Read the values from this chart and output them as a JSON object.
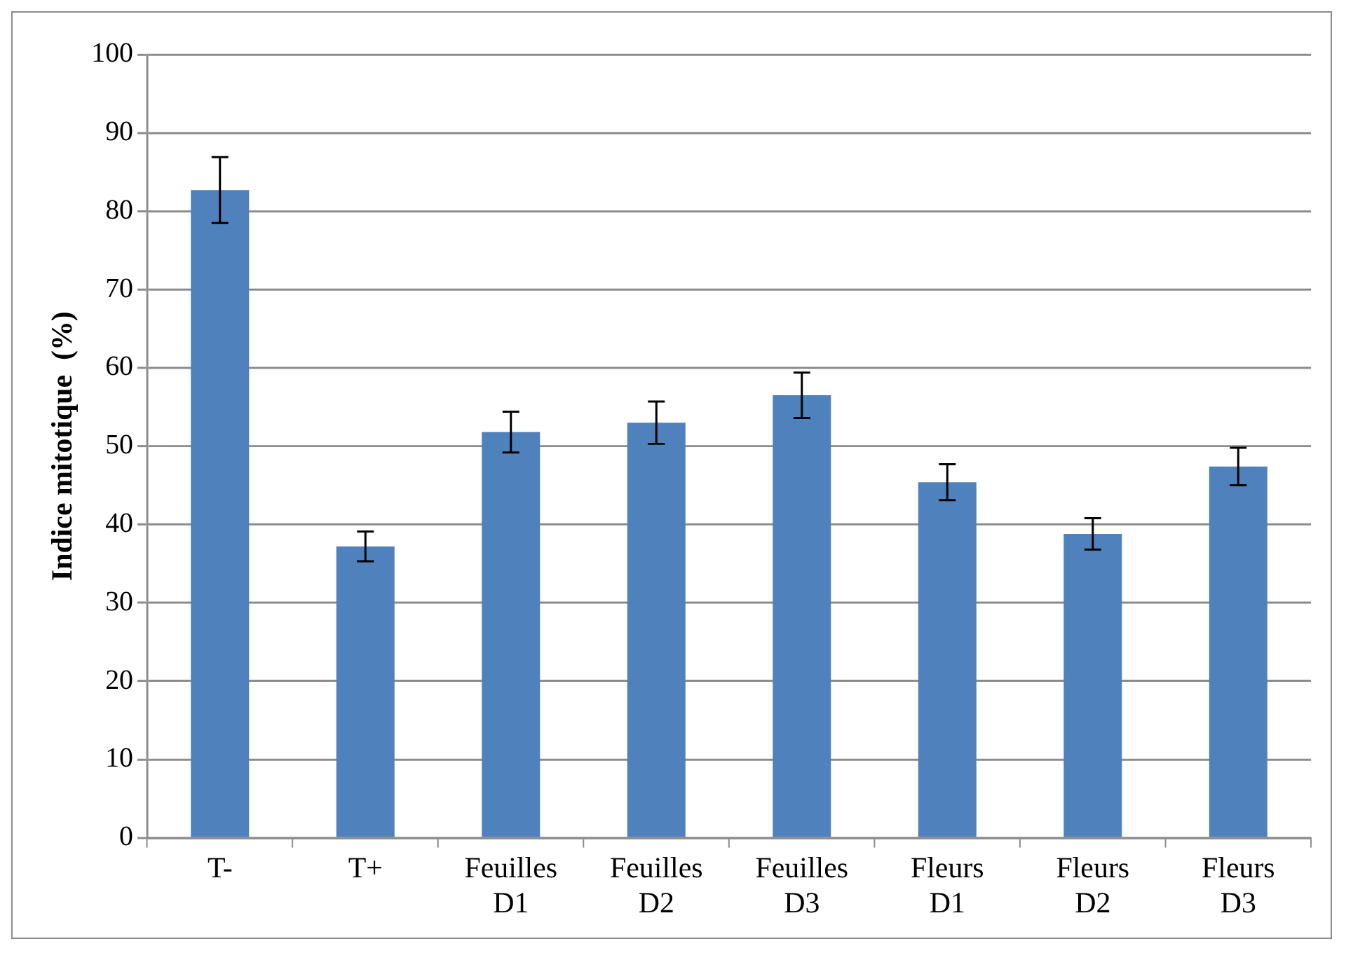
{
  "chart_data": {
    "type": "bar",
    "ylabel": "Indice mitotique  (%)",
    "categories": [
      "T-",
      "T+",
      "Feuilles D1",
      "Feuilles D2",
      "Feuilles D3",
      "Fleurs D1",
      "Fleurs D2",
      "Fleurs D3"
    ],
    "values": [
      82.7,
      37.2,
      51.8,
      53.0,
      56.5,
      45.4,
      38.8,
      47.4
    ],
    "errors": [
      4.2,
      1.9,
      2.6,
      2.7,
      2.9,
      2.3,
      2.0,
      2.4
    ],
    "color": "#4f81bd",
    "ylim": [
      0,
      100
    ],
    "yticks": [
      0,
      10,
      20,
      30,
      40,
      50,
      60,
      70,
      80,
      90,
      100
    ],
    "grid": "y",
    "legend": false
  }
}
